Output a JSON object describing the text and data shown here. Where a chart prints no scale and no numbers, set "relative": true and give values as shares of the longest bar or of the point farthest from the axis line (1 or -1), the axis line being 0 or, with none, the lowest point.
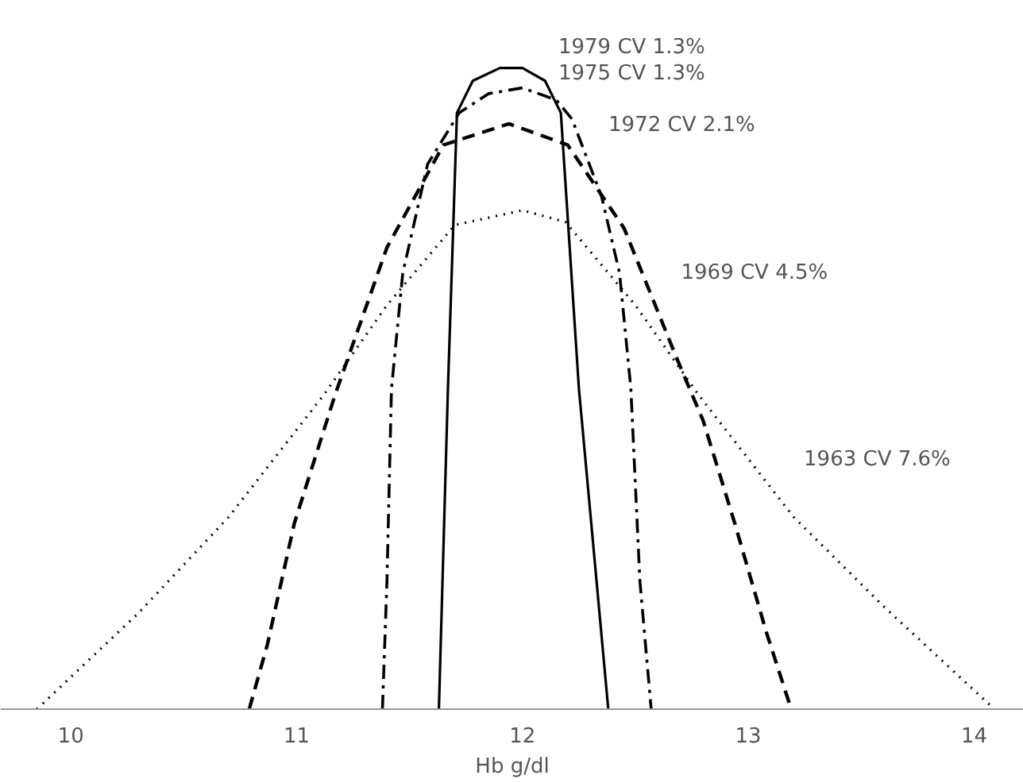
{
  "chart_data": {
    "type": "line",
    "relative": true,
    "xlabel": "Hb g/dl",
    "xlim": [
      9.69,
      14.22
    ],
    "xticks": [
      10,
      11,
      12,
      13,
      14
    ],
    "grid": false,
    "marker": "none",
    "series": [
      {
        "color": "#000000",
        "line_style": "solid",
        "x": [
          11.63,
          11.67,
          11.71,
          11.78,
          11.9,
          12.0,
          12.1,
          12.17,
          12.25,
          12.38
        ],
        "values": [
          0,
          0.5,
          0.93,
          0.98,
          1.0,
          1.0,
          0.98,
          0.93,
          0.5,
          0
        ]
      },
      {
        "color": "#000000",
        "line_style": "dashdot",
        "x": [
          11.38,
          11.4,
          11.42,
          11.47,
          11.58,
          11.72,
          11.85,
          12.0,
          12.15,
          12.22,
          12.35,
          12.43,
          12.48,
          12.52,
          12.57
        ],
        "values": [
          0,
          0.2,
          0.5,
          0.68,
          0.85,
          0.93,
          0.96,
          0.969,
          0.95,
          0.92,
          0.8,
          0.68,
          0.5,
          0.2,
          0
        ]
      },
      {
        "color": "#000000",
        "line_style": "dashed",
        "x": [
          10.79,
          10.87,
          10.99,
          11.17,
          11.4,
          11.65,
          11.94,
          12.2,
          12.45,
          12.68,
          12.8,
          12.94,
          13.08,
          13.19
        ],
        "values": [
          0,
          0.1,
          0.29,
          0.49,
          0.72,
          0.88,
          0.913,
          0.88,
          0.75,
          0.55,
          0.45,
          0.29,
          0.12,
          0
        ]
      },
      {
        "color": "#000000",
        "line_style": "dotted",
        "x": [
          9.85,
          10.3,
          10.7,
          11.12,
          11.4,
          11.7,
          12.0,
          12.19,
          12.5,
          12.78,
          13.2,
          13.6,
          14.09
        ],
        "values": [
          0,
          0.15,
          0.3,
          0.49,
          0.63,
          0.755,
          0.778,
          0.76,
          0.63,
          0.49,
          0.3,
          0.16,
          0
        ]
      }
    ],
    "annotations": [
      "1979 CV 1.3%",
      "1975 CV 1.3%",
      "1972 CV 2.1%",
      "1969 CV 4.5%",
      "1963 CV 7.6%"
    ]
  }
}
